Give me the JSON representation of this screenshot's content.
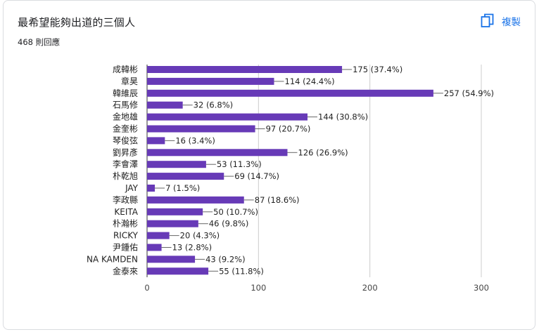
{
  "question": {
    "title": "最希望能夠出道的三個人",
    "response_count": "468 則回應"
  },
  "toolbar": {
    "copy_label": "複製",
    "copy_icon": "copy-icon",
    "accent_color": "#1a73e8"
  },
  "chart_data": {
    "type": "bar",
    "orientation": "horizontal",
    "bar_color": "#673ab7",
    "categories": [
      "成韓彬",
      "章昊",
      "韓維辰",
      "石馬修",
      "金地雄",
      "金奎彬",
      "琴俊弦",
      "劉昇彥",
      "李會澤",
      "朴乾旭",
      "JAY",
      "李政縣",
      "KEITA",
      "朴瀚彬",
      "RICKY",
      "尹鍾佑",
      "NA KAMDEN",
      "金泰來"
    ],
    "values": [
      175,
      114,
      257,
      32,
      144,
      97,
      16,
      126,
      53,
      69,
      7,
      87,
      50,
      46,
      20,
      13,
      43,
      55
    ],
    "labels": [
      "175 (37.4%)",
      "114 (24.4%)",
      "257 (54.9%)",
      "32 (6.8%)",
      "144 (30.8%)",
      "97 (20.7%)",
      "16 (3.4%)",
      "126 (26.9%)",
      "53 (11.3%)",
      "69 (14.7%)",
      "7 (1.5%)",
      "87 (18.6%)",
      "50 (10.7%)",
      "46 (9.8%)",
      "20 (4.3%)",
      "13 (2.8%)",
      "43 (9.2%)",
      "55 (11.8%)"
    ],
    "xlim": [
      0,
      300
    ],
    "xticks": [
      "0",
      "100",
      "200",
      "300"
    ],
    "grid": true
  }
}
